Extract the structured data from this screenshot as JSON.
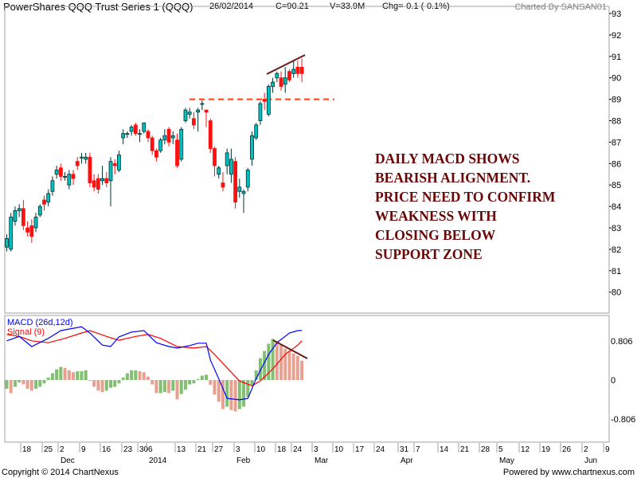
{
  "header": {
    "title": "PowerShares QQQ Trust Series 1 (QQQ)",
    "date": "26/02/2014",
    "close": "C=90.21",
    "volume": "V=33.9M",
    "change": "Chg=-0.1 (-0.1%)",
    "credit": "Charted By SANSAN01"
  },
  "footer": {
    "copyright": "Copyright © 2014 ChartNexus",
    "powered": "Powered by www.chartnexus.com"
  },
  "annotation": {
    "lines": [
      "DAILY MACD SHOWS",
      "BEARISH ALIGNMENT.",
      "PRICE NEED TO CONFIRM",
      "WEAKNESS WITH",
      "CLOSING BELOW",
      "SUPPORT ZONE"
    ],
    "color": "#6b0505"
  },
  "colors": {
    "up": "#00c0c0",
    "down": "#ff1010",
    "support": "#ff4010",
    "trendline": "#6b1a1a",
    "macd": "#0000ff",
    "signal": "#ff0000",
    "hist_up": "#80c070",
    "hist_down": "#e8a090"
  },
  "chart_data": [
    {
      "type": "candlestick",
      "title": "PowerShares QQQ Trust Series 1 (QQQ)",
      "ylim": [
        79.7,
        93.2
      ],
      "y_ticks": [
        "93",
        "92",
        "91",
        "90",
        "89",
        "88",
        "87",
        "86",
        "85",
        "84",
        "83",
        "82",
        "81",
        "80"
      ],
      "x_ticks": [
        "18",
        "25",
        "2",
        "9",
        "16",
        "23",
        "30",
        "6",
        "13",
        "21",
        "27",
        "3",
        "10",
        "18",
        "24",
        "3",
        "10",
        "17",
        "24",
        "31",
        "7",
        "14",
        "21",
        "28",
        "5",
        "12",
        "19",
        "26",
        "2",
        "9"
      ],
      "x_months": [
        "Dec",
        "2014",
        "Feb",
        "Mar",
        "Apr",
        "May",
        "Jun"
      ],
      "support_level": 89.0,
      "ohlc": [
        [
          82.1,
          82.7,
          81.9,
          82.5
        ],
        [
          82.0,
          83.7,
          81.9,
          83.5
        ],
        [
          83.3,
          84.0,
          83.1,
          83.8
        ],
        [
          83.8,
          84.1,
          83.5,
          83.9
        ],
        [
          83.9,
          84.3,
          82.9,
          83.1
        ],
        [
          83.0,
          83.3,
          82.6,
          82.8
        ],
        [
          83.1,
          83.4,
          82.3,
          82.6
        ],
        [
          83.0,
          83.7,
          82.8,
          83.5
        ],
        [
          83.6,
          84.1,
          83.5,
          84.0
        ],
        [
          84.3,
          84.5,
          83.8,
          84.1
        ],
        [
          84.2,
          84.8,
          84.0,
          84.6
        ],
        [
          84.7,
          85.4,
          84.5,
          85.2
        ],
        [
          85.5,
          85.9,
          85.3,
          85.7
        ],
        [
          85.8,
          86.0,
          85.2,
          85.4
        ],
        [
          85.4,
          85.6,
          85.2,
          85.4
        ],
        [
          85.0,
          85.7,
          84.8,
          85.5
        ],
        [
          85.5,
          85.7,
          85.0,
          85.3
        ],
        [
          86.1,
          86.3,
          85.7,
          85.9
        ],
        [
          86.3,
          86.5,
          86.0,
          86.3
        ],
        [
          86.2,
          86.5,
          86.0,
          86.3
        ],
        [
          86.3,
          86.5,
          84.9,
          85.1
        ],
        [
          85.2,
          85.5,
          84.7,
          84.9
        ],
        [
          85.3,
          85.5,
          84.6,
          84.8
        ],
        [
          85.2,
          85.9,
          85.0,
          85.3
        ],
        [
          85.3,
          85.6,
          84.9,
          85.1
        ],
        [
          85.2,
          86.3,
          84.0,
          86.1
        ],
        [
          86.0,
          86.2,
          85.5,
          85.9
        ],
        [
          85.7,
          86.6,
          85.6,
          86.4
        ],
        [
          87.2,
          87.6,
          86.9,
          87.4
        ],
        [
          87.4,
          87.5,
          87.2,
          87.4
        ],
        [
          87.5,
          87.8,
          87.3,
          87.7
        ],
        [
          87.8,
          87.9,
          87.3,
          87.4
        ],
        [
          87.4,
          87.6,
          87.0,
          87.4
        ],
        [
          87.5,
          87.9,
          87.4,
          87.9
        ],
        [
          87.5,
          87.6,
          87.0,
          87.2
        ],
        [
          87.2,
          87.3,
          86.4,
          86.6
        ],
        [
          86.6,
          86.7,
          86.1,
          86.3
        ],
        [
          86.6,
          87.2,
          86.5,
          87.1
        ],
        [
          87.1,
          87.6,
          86.9,
          87.3
        ],
        [
          87.6,
          87.7,
          86.8,
          87.0
        ],
        [
          87.2,
          87.5,
          86.9,
          87.3
        ],
        [
          87.1,
          87.4,
          85.8,
          85.9
        ],
        [
          86.2,
          87.7,
          86.1,
          87.6
        ],
        [
          88.0,
          88.6,
          87.9,
          88.5
        ],
        [
          88.3,
          88.6,
          88.1,
          88.4
        ],
        [
          88.1,
          88.4,
          87.6,
          87.8
        ],
        [
          88.4,
          88.6,
          87.5,
          88.5
        ],
        [
          88.8,
          88.95,
          88.5,
          88.8
        ],
        [
          88.5,
          88.5,
          87.7,
          88.4
        ],
        [
          88.0,
          88.1,
          86.5,
          86.7
        ],
        [
          86.7,
          86.8,
          85.4,
          85.9
        ],
        [
          85.5,
          85.9,
          85.3,
          85.8
        ],
        [
          85.1,
          85.6,
          84.7,
          84.9
        ],
        [
          85.9,
          86.7,
          85.5,
          86.5
        ],
        [
          85.5,
          86.7,
          85.1,
          86.2
        ],
        [
          86.1,
          86.3,
          83.9,
          84.2
        ],
        [
          84.7,
          85.3,
          84.4,
          84.9
        ],
        [
          84.6,
          84.8,
          83.7,
          84.7
        ],
        [
          84.9,
          85.8,
          84.7,
          85.7
        ],
        [
          86.2,
          87.5,
          85.9,
          87.3
        ],
        [
          87.2,
          87.9,
          87.1,
          87.8
        ],
        [
          88.0,
          88.9,
          87.8,
          88.8
        ],
        [
          89.0,
          89.3,
          88.5,
          88.9
        ],
        [
          88.3,
          89.7,
          88.2,
          89.6
        ],
        [
          89.6,
          90.0,
          89.3,
          89.8
        ],
        [
          90.0,
          90.3,
          89.8,
          90.2
        ],
        [
          90.0,
          90.3,
          89.4,
          89.6
        ],
        [
          89.7,
          90.5,
          89.3,
          90.0
        ],
        [
          90.3,
          90.4,
          89.8,
          89.9
        ],
        [
          90.2,
          90.8,
          90.0,
          90.4
        ],
        [
          90.5,
          90.8,
          90.0,
          90.2
        ],
        [
          90.5,
          90.9,
          89.8,
          90.2
        ]
      ]
    },
    {
      "type": "line+bar",
      "legend": [
        "MACD (26d,12d)",
        "Signal (9)"
      ],
      "legend_placement": "top-left",
      "y_ticks": [
        "0.806",
        "0",
        "-0.806"
      ],
      "ylim": [
        -1.2,
        1.5
      ],
      "macd": [
        [
          0,
          0.81
        ],
        [
          3,
          0.9
        ],
        [
          6,
          0.69
        ],
        [
          10,
          0.86
        ],
        [
          13,
          1.02
        ],
        [
          18,
          1.1
        ],
        [
          20,
          0.97
        ],
        [
          23,
          0.72
        ],
        [
          25,
          0.69
        ],
        [
          27,
          0.89
        ],
        [
          30,
          0.99
        ],
        [
          33,
          1.02
        ],
        [
          36,
          0.77
        ],
        [
          39,
          0.69
        ],
        [
          41,
          0.66
        ],
        [
          44,
          0.71
        ],
        [
          46,
          0.76
        ],
        [
          48,
          0.76
        ],
        [
          49,
          0.41
        ],
        [
          51,
          0.03
        ],
        [
          53,
          -0.38
        ],
        [
          56,
          -0.41
        ],
        [
          58,
          -0.38
        ],
        [
          60,
          0.03
        ],
        [
          63,
          0.53
        ],
        [
          65,
          0.77
        ],
        [
          68,
          0.97
        ],
        [
          70,
          1.02
        ],
        [
          71,
          1.02
        ]
      ],
      "signal": [
        [
          0,
          0.94
        ],
        [
          3,
          0.9
        ],
        [
          6,
          0.81
        ],
        [
          10,
          0.77
        ],
        [
          14,
          0.86
        ],
        [
          18,
          0.97
        ],
        [
          20,
          1.02
        ],
        [
          24,
          0.9
        ],
        [
          27,
          0.82
        ],
        [
          31,
          0.9
        ],
        [
          34,
          0.94
        ],
        [
          37,
          0.86
        ],
        [
          41,
          0.69
        ],
        [
          45,
          0.66
        ],
        [
          48,
          0.69
        ],
        [
          50,
          0.53
        ],
        [
          53,
          0.25
        ],
        [
          56,
          -0.02
        ],
        [
          59,
          -0.12
        ],
        [
          61,
          -0.02
        ],
        [
          64,
          0.23
        ],
        [
          67,
          0.53
        ],
        [
          70,
          0.72
        ],
        [
          71,
          0.81
        ]
      ],
      "histogram": [
        -0.18,
        -0.27,
        -0.14,
        -0.05,
        -0.09,
        -0.18,
        -0.22,
        -0.18,
        -0.14,
        -0.07,
        0.05,
        0.14,
        0.22,
        0.27,
        0.25,
        0.2,
        0.16,
        0.18,
        0.18,
        0.2,
        0.0,
        -0.14,
        -0.22,
        -0.25,
        -0.22,
        -0.16,
        -0.14,
        -0.07,
        0.05,
        0.14,
        0.2,
        0.2,
        0.18,
        0.16,
        0.07,
        -0.09,
        -0.27,
        -0.27,
        -0.25,
        -0.27,
        -0.22,
        -0.4,
        -0.29,
        -0.2,
        -0.09,
        -0.07,
        0.02,
        0.09,
        0.11,
        -0.1,
        -0.3,
        -0.45,
        -0.6,
        -0.55,
        -0.62,
        -0.65,
        -0.6,
        -0.55,
        -0.35,
        -0.1,
        0.2,
        0.45,
        0.6,
        0.75,
        0.85,
        0.8,
        0.72,
        0.65,
        0.6,
        0.55,
        0.5,
        0.4
      ]
    }
  ]
}
